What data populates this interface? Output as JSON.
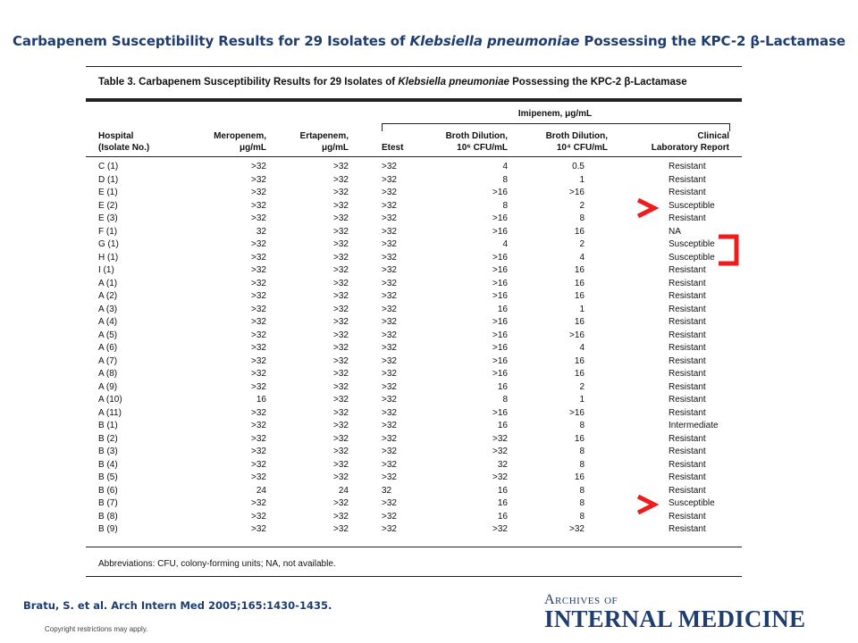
{
  "slide": {
    "title_pre": "Carbapenem Susceptibility Results for 29 Isolates of ",
    "title_italic": "Klebsiella pneumoniae",
    "title_post": " Possessing the KPC-2 β-Lactamase",
    "citation": "Bratu, S. et al. Arch Intern Med 2005;165:1430-1435.",
    "copyright": "Copyright restrictions may apply.",
    "journal_line1": "Archives of",
    "journal_line2": "INTERNAL MEDICINE"
  },
  "table": {
    "caption_pre": "Table 3. Carbapenem Susceptibility Results for 29 Isolates of ",
    "caption_italic": "Klebsiella pneumoniae",
    "caption_post": " Possessing the KPC-2 β-Lactamase",
    "imipenem_group_label": "Imipenem, μg/mL",
    "headers": {
      "hospital": [
        "Hospital",
        "(Isolate No.)"
      ],
      "meropenem": [
        "Meropenem,",
        "μg/mL"
      ],
      "ertapenem": [
        "Ertapenem,",
        "μg/mL"
      ],
      "etest": [
        "",
        "Etest"
      ],
      "broth6": [
        "Broth Dilution,",
        "10⁶ CFU/mL"
      ],
      "broth4": [
        "Broth Dilution,",
        "10⁴ CFU/mL"
      ],
      "report": [
        "Clinical",
        "Laboratory Report"
      ]
    },
    "rows": [
      [
        "C (1)",
        ">32",
        ">32",
        ">32",
        "4",
        "0.5",
        "Resistant"
      ],
      [
        "D (1)",
        ">32",
        ">32",
        ">32",
        "8",
        "1",
        "Resistant"
      ],
      [
        "E (1)",
        ">32",
        ">32",
        ">32",
        ">16",
        ">16",
        "Resistant"
      ],
      [
        "E (2)",
        ">32",
        ">32",
        ">32",
        "8",
        "2",
        "Susceptible"
      ],
      [
        "E (3)",
        ">32",
        ">32",
        ">32",
        ">16",
        "8",
        "Resistant"
      ],
      [
        "F (1)",
        "32",
        ">32",
        ">32",
        ">16",
        "16",
        "NA"
      ],
      [
        "G (1)",
        ">32",
        ">32",
        ">32",
        "4",
        "2",
        "Susceptible"
      ],
      [
        "H (1)",
        ">32",
        ">32",
        ">32",
        ">16",
        "4",
        "Susceptible"
      ],
      [
        "I (1)",
        ">32",
        ">32",
        ">32",
        ">16",
        "16",
        "Resistant"
      ],
      [
        "A (1)",
        ">32",
        ">32",
        ">32",
        ">16",
        "16",
        "Resistant"
      ],
      [
        "A (2)",
        ">32",
        ">32",
        ">32",
        ">16",
        "16",
        "Resistant"
      ],
      [
        "A (3)",
        ">32",
        ">32",
        ">32",
        "16",
        "1",
        "Resistant"
      ],
      [
        "A (4)",
        ">32",
        ">32",
        ">32",
        ">16",
        "16",
        "Resistant"
      ],
      [
        "A (5)",
        ">32",
        ">32",
        ">32",
        ">16",
        ">16",
        "Resistant"
      ],
      [
        "A (6)",
        ">32",
        ">32",
        ">32",
        ">16",
        "4",
        "Resistant"
      ],
      [
        "A (7)",
        ">32",
        ">32",
        ">32",
        ">16",
        "16",
        "Resistant"
      ],
      [
        "A (8)",
        ">32",
        ">32",
        ">32",
        ">16",
        "16",
        "Resistant"
      ],
      [
        "A (9)",
        ">32",
        ">32",
        ">32",
        "16",
        "2",
        "Resistant"
      ],
      [
        "A (10)",
        "16",
        ">32",
        ">32",
        "8",
        "1",
        "Resistant"
      ],
      [
        "A (11)",
        ">32",
        ">32",
        ">32",
        ">16",
        ">16",
        "Resistant"
      ],
      [
        "B (1)",
        ">32",
        ">32",
        ">32",
        "16",
        "8",
        "Intermediate"
      ],
      [
        "B (2)",
        ">32",
        ">32",
        ">32",
        ">32",
        "16",
        "Resistant"
      ],
      [
        "B (3)",
        ">32",
        ">32",
        ">32",
        ">32",
        "8",
        "Resistant"
      ],
      [
        "B (4)",
        ">32",
        ">32",
        ">32",
        "32",
        "8",
        "Resistant"
      ],
      [
        "B (5)",
        ">32",
        ">32",
        ">32",
        ">32",
        "16",
        "Resistant"
      ],
      [
        "B (6)",
        "24",
        "24",
        "32",
        "16",
        "8",
        "Resistant"
      ],
      [
        "B (7)",
        ">32",
        ">32",
        ">32",
        "16",
        "8",
        "Susceptible"
      ],
      [
        "B (8)",
        ">32",
        ">32",
        ">32",
        "16",
        "8",
        "Resistant"
      ],
      [
        "B (9)",
        ">32",
        ">32",
        ">32",
        ">32",
        ">32",
        "Resistant"
      ]
    ],
    "footnote": "Abbreviations: CFU, colony-forming units; NA, not available."
  },
  "annotations": {
    "color": "#ee1c1c",
    "arrows_point_to_rows": [
      3,
      26
    ],
    "bracket_spans_rows": [
      6,
      7
    ]
  }
}
